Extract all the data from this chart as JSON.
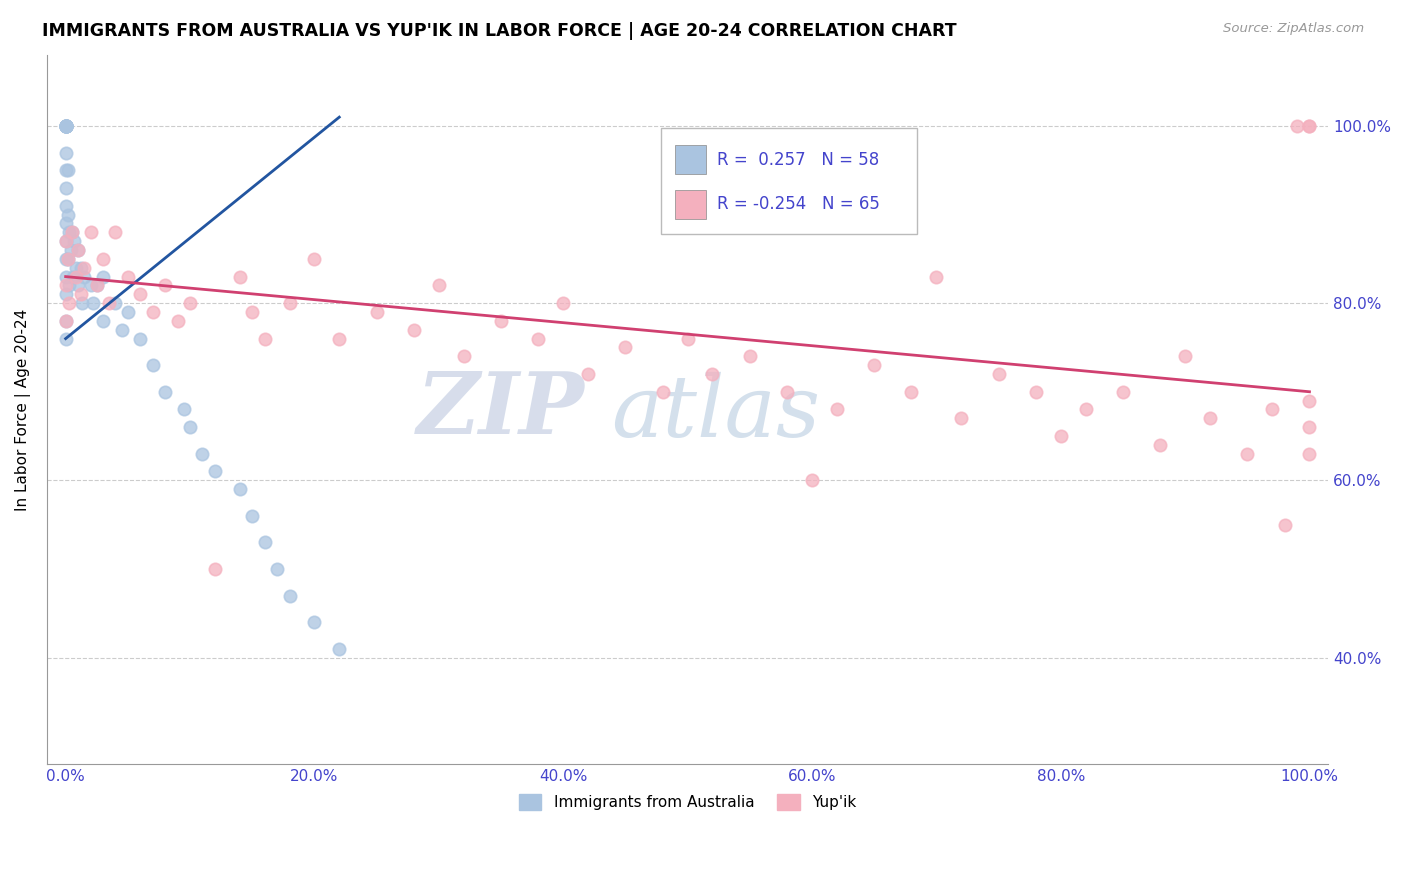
{
  "title": "IMMIGRANTS FROM AUSTRALIA VS YUP'IK IN LABOR FORCE | AGE 20-24 CORRELATION CHART",
  "source": "Source: ZipAtlas.com",
  "ylabel": "In Labor Force | Age 20-24",
  "legend_labels": [
    "Immigrants from Australia",
    "Yup'ik"
  ],
  "blue_color": "#aac4e0",
  "pink_color": "#f4b0be",
  "blue_line_color": "#2255a0",
  "pink_line_color": "#d04070",
  "legend_r_blue": " 0.257",
  "legend_n_blue": "58",
  "legend_r_pink": "-0.254",
  "legend_n_pink": "65",
  "label_color": "#4444cc",
  "watermark_zip": "ZIP",
  "watermark_atlas": "atlas",
  "blue_scatter_x": [
    0.0,
    0.0,
    0.0,
    0.0,
    0.0,
    0.0,
    0.0,
    0.0,
    0.0,
    0.0,
    0.0,
    0.0,
    0.0,
    0.0,
    0.0,
    0.0,
    0.0,
    0.0,
    0.0,
    0.0,
    0.0,
    0.002,
    0.002,
    0.002,
    0.003,
    0.003,
    0.004,
    0.005,
    0.006,
    0.007,
    0.008,
    0.01,
    0.01,
    0.012,
    0.013,
    0.015,
    0.02,
    0.022,
    0.025,
    0.03,
    0.03,
    0.04,
    0.045,
    0.05,
    0.06,
    0.07,
    0.08,
    0.095,
    0.1,
    0.11,
    0.12,
    0.14,
    0.15,
    0.16,
    0.17,
    0.18,
    0.2,
    0.22
  ],
  "blue_scatter_y": [
    1.0,
    1.0,
    1.0,
    1.0,
    1.0,
    1.0,
    1.0,
    1.0,
    1.0,
    1.0,
    0.97,
    0.95,
    0.93,
    0.91,
    0.89,
    0.87,
    0.85,
    0.83,
    0.81,
    0.78,
    0.76,
    0.95,
    0.9,
    0.85,
    0.88,
    0.82,
    0.86,
    0.88,
    0.83,
    0.87,
    0.84,
    0.86,
    0.82,
    0.84,
    0.8,
    0.83,
    0.82,
    0.8,
    0.82,
    0.83,
    0.78,
    0.8,
    0.77,
    0.79,
    0.76,
    0.73,
    0.7,
    0.68,
    0.66,
    0.63,
    0.61,
    0.59,
    0.56,
    0.53,
    0.5,
    0.47,
    0.44,
    0.41
  ],
  "pink_scatter_x": [
    0.0,
    0.0,
    0.0,
    0.002,
    0.003,
    0.005,
    0.008,
    0.01,
    0.012,
    0.015,
    0.02,
    0.025,
    0.03,
    0.035,
    0.04,
    0.05,
    0.06,
    0.07,
    0.08,
    0.09,
    0.1,
    0.12,
    0.14,
    0.15,
    0.16,
    0.18,
    0.2,
    0.22,
    0.25,
    0.28,
    0.3,
    0.32,
    0.35,
    0.38,
    0.4,
    0.42,
    0.45,
    0.48,
    0.5,
    0.52,
    0.55,
    0.58,
    0.6,
    0.62,
    0.65,
    0.68,
    0.7,
    0.72,
    0.75,
    0.78,
    0.8,
    0.82,
    0.85,
    0.88,
    0.9,
    0.92,
    0.95,
    0.97,
    0.98,
    0.99,
    1.0,
    1.0,
    1.0,
    1.0,
    1.0
  ],
  "pink_scatter_y": [
    0.87,
    0.82,
    0.78,
    0.85,
    0.8,
    0.88,
    0.83,
    0.86,
    0.81,
    0.84,
    0.88,
    0.82,
    0.85,
    0.8,
    0.88,
    0.83,
    0.81,
    0.79,
    0.82,
    0.78,
    0.8,
    0.5,
    0.83,
    0.79,
    0.76,
    0.8,
    0.85,
    0.76,
    0.79,
    0.77,
    0.82,
    0.74,
    0.78,
    0.76,
    0.8,
    0.72,
    0.75,
    0.7,
    0.76,
    0.72,
    0.74,
    0.7,
    0.6,
    0.68,
    0.73,
    0.7,
    0.83,
    0.67,
    0.72,
    0.7,
    0.65,
    0.68,
    0.7,
    0.64,
    0.74,
    0.67,
    0.63,
    0.68,
    0.55,
    1.0,
    1.0,
    1.0,
    0.69,
    0.66,
    0.63
  ],
  "blue_trend_x0": 0.0,
  "blue_trend_x1": 0.22,
  "blue_trend_y0": 0.76,
  "blue_trend_y1": 1.01,
  "pink_trend_x0": 0.0,
  "pink_trend_x1": 1.0,
  "pink_trend_y0": 0.83,
  "pink_trend_y1": 0.7,
  "xlim_min": -0.015,
  "xlim_max": 1.015,
  "ylim_min": 0.28,
  "ylim_max": 1.08,
  "xticks": [
    0.0,
    0.2,
    0.4,
    0.6,
    0.8,
    1.0
  ],
  "yticks": [
    0.4,
    0.6,
    0.8,
    1.0
  ]
}
